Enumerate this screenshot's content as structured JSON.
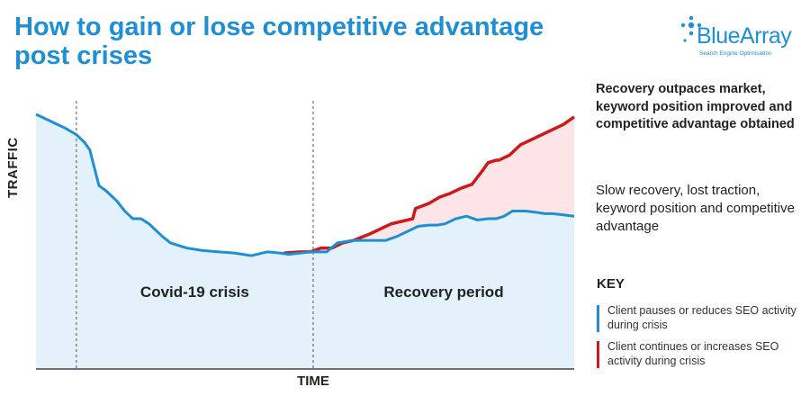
{
  "title": "How to gain or lose competitive advantage post crises",
  "logo": {
    "name": "BlueArray",
    "tagline": "Search Engine Optimisation"
  },
  "descriptions": {
    "gain": "Recovery outpaces market, keyword position improved and competitive advantage obtained",
    "lose": "Slow recovery, lost traction, keyword position and competitive advantage"
  },
  "key": {
    "title": "KEY",
    "items": [
      {
        "label": "Client pauses or reduces SEO activity during crisis",
        "color": "#1e8fd5"
      },
      {
        "label": "Client continues or increases SEO activity during crisis",
        "color": "#cc1a1a"
      }
    ]
  },
  "colors": {
    "blue": "#1e8fd5",
    "red": "#cc1a1a",
    "blue_fill": "#e3f1fb",
    "red_fill": "#fde4e6"
  },
  "chart_data": {
    "type": "line",
    "title": "How to gain or lose competitive advantage post crises",
    "xlabel": "TIME",
    "ylabel": "TRAFFIC",
    "xlim": [
      0,
      100
    ],
    "ylim": [
      0,
      100
    ],
    "regions": [
      {
        "label": "Covid-19 crisis",
        "x_start": 7.5,
        "x_end": 51.5
      },
      {
        "label": "Recovery period",
        "x_start": 51.5,
        "x_end": 100
      }
    ],
    "series": [
      {
        "name": "Client pauses or reduces SEO activity during crisis",
        "color": "#1e8fd5",
        "x": [
          0,
          3,
          5.5,
          7.5,
          9,
          10,
          11.7,
          13,
          15,
          16.5,
          18,
          19.5,
          21,
          23.5,
          25,
          28,
          31,
          34,
          37,
          40,
          43,
          45.5,
          47,
          49,
          51,
          54,
          56,
          57.5,
          59,
          62,
          65,
          67,
          69,
          71,
          73,
          74.5,
          76,
          78,
          80,
          82,
          84,
          85.5,
          87,
          88.5,
          91,
          93,
          94.5,
          96,
          98,
          100
        ],
        "y": [
          100,
          97,
          94.5,
          92,
          89,
          86,
          72,
          70,
          66,
          62,
          59,
          59,
          57,
          52,
          49.5,
          47.5,
          46.5,
          46,
          45.5,
          44.5,
          46,
          45.5,
          45,
          45.5,
          46,
          46,
          49.5,
          50,
          50.5,
          50.5,
          50.5,
          52,
          54,
          56,
          56.5,
          56.5,
          57,
          59,
          60,
          58.5,
          59,
          59,
          60,
          62,
          62,
          61.5,
          61,
          61,
          60.5,
          60
        ]
      },
      {
        "name": "Client continues or increases SEO activity during crisis",
        "color": "#cc1a1a",
        "x": [
          46,
          49,
          51,
          53,
          55,
          57,
          59,
          62,
          64,
          66,
          68,
          70,
          70.5,
          73,
          75,
          77,
          79,
          81,
          83,
          84,
          85.5,
          86,
          88,
          89,
          90,
          92,
          94,
          96,
          98,
          100
        ],
        "y": [
          45.5,
          46,
          46,
          47.5,
          47.5,
          49.5,
          50.5,
          53,
          55,
          57,
          58,
          59,
          63,
          65,
          67.5,
          69,
          71,
          72.5,
          78,
          81,
          82,
          82,
          84,
          86,
          88,
          90,
          92,
          94,
          96,
          99
        ]
      }
    ]
  }
}
